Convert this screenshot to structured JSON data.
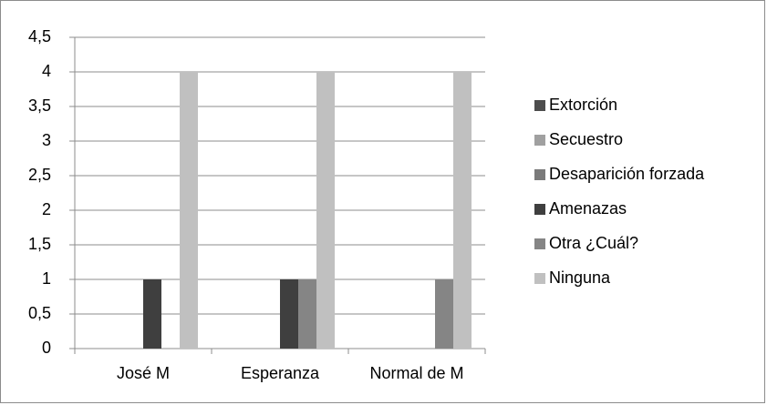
{
  "chart_data": {
    "type": "bar",
    "categories": [
      "José M",
      "Esperanza",
      "Normal de M"
    ],
    "series": [
      {
        "name": "Extorción",
        "color": "#4d4d4d",
        "values": [
          0,
          0,
          0
        ]
      },
      {
        "name": "Secuestro",
        "color": "#a0a0a0",
        "values": [
          0,
          0,
          0
        ]
      },
      {
        "name": "Desaparición forzada",
        "color": "#7a7a7a",
        "values": [
          0,
          0,
          0
        ]
      },
      {
        "name": "Amenazas",
        "color": "#3f3f3f",
        "values": [
          1,
          1,
          0
        ]
      },
      {
        "name": "Otra ¿Cuál?",
        "color": "#858585",
        "values": [
          0,
          1,
          1
        ]
      },
      {
        "name": "Ninguna",
        "color": "#c0c0c0",
        "values": [
          4,
          4,
          4
        ]
      }
    ],
    "ylim": [
      0,
      4.5
    ],
    "yticks": [
      0,
      {
        "value": 0.5,
        "label": "0,5"
      },
      1,
      {
        "value": 1.5,
        "label": "1,5"
      },
      2,
      {
        "value": 2.5,
        "label": "2,5"
      },
      3,
      {
        "value": 3.5,
        "label": "3,5"
      },
      4,
      {
        "value": 4.5,
        "label": "4,5"
      }
    ],
    "grid": true,
    "legend": "right"
  }
}
